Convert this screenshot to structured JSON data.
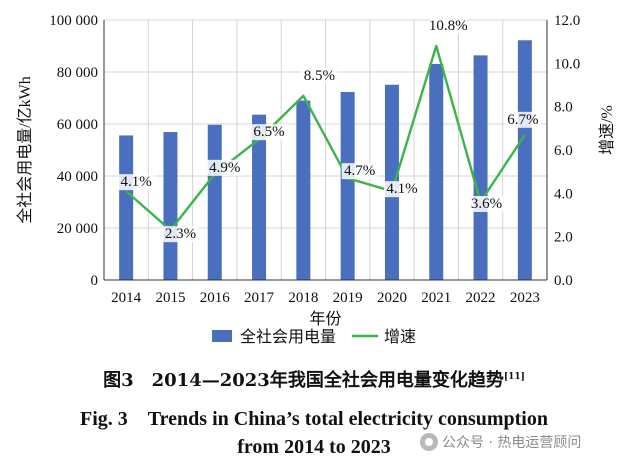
{
  "chart_data": {
    "type": "bar+line",
    "categories": [
      "2014",
      "2015",
      "2016",
      "2017",
      "2018",
      "2019",
      "2020",
      "2021",
      "2022",
      "2023"
    ],
    "series": [
      {
        "name": "全社会用电量",
        "type": "bar",
        "axis": "left",
        "color": "#4a6fbe",
        "values": [
          55600,
          56900,
          59700,
          63600,
          69000,
          72300,
          75100,
          83100,
          86400,
          92200
        ]
      },
      {
        "name": "增速",
        "type": "line",
        "axis": "right",
        "color": "#3bb54a",
        "values": [
          4.1,
          2.3,
          4.9,
          6.5,
          8.5,
          4.7,
          4.1,
          10.8,
          3.6,
          6.7
        ]
      }
    ],
    "data_labels": [
      "4.1%",
      "2.3%",
      "4.9%",
      "6.5%",
      "8.5%",
      "4.7%",
      "4.1%",
      "10.8%",
      "3.6%",
      "6.7%"
    ],
    "left_axis": {
      "label": "全社会用电量/亿kWh",
      "ylim": [
        0,
        100000
      ],
      "ticks": [
        0,
        20000,
        40000,
        60000,
        80000,
        100000
      ],
      "tick_labels": [
        "0",
        "20 000",
        "40 000",
        "60 000",
        "80 000",
        "100 000"
      ]
    },
    "right_axis": {
      "label": "增速/%",
      "ylim": [
        0,
        12
      ],
      "ticks": [
        0,
        2,
        4,
        6,
        8,
        10,
        12
      ],
      "tick_labels": [
        "0.0",
        "2.0",
        "4.0",
        "6.0",
        "8.0",
        "10.0",
        "12.0"
      ]
    },
    "xlabel": "年份",
    "grid": true,
    "legend": {
      "position": "bottom",
      "items": [
        "全社会用电量",
        "增速"
      ]
    }
  },
  "caption": {
    "cn": "图3　2014—2023年我国全社会用电量变化趋势",
    "cn_ref": "[11]",
    "en_line1": "Fig. 3　Trends in China’s total electricity consumption",
    "en_line2": "from 2014 to 2023"
  },
  "watermark": "公众号 · 热电运营顾问"
}
